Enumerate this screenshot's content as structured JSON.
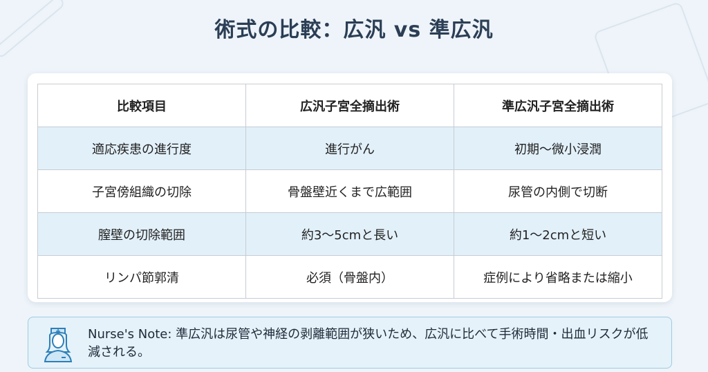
{
  "title": "術式の比較：広汎 vs 準広汎",
  "table": {
    "headers": [
      "比較項目",
      "広汎子宮全摘出術",
      "準広汎子宮全摘出術"
    ],
    "rows": [
      [
        "適応疾患の進行度",
        "進行がん",
        "初期～微小浸潤"
      ],
      [
        "子宮傍組織の切除",
        "骨盤壁近くまで広範囲",
        "尿管の内側で切断"
      ],
      [
        "膣壁の切除範囲",
        "約3～5cmと長い",
        "約1～2cmと短い"
      ],
      [
        "リンパ節郭清",
        "必須（骨盤内）",
        "症例により省略または縮小"
      ]
    ]
  },
  "note": {
    "icon": "nurse-icon",
    "text": "Nurse's Note: 準広汎は尿管や神経の剥離範囲が狭いため、広汎に比べて手術時間・出血リスクが低減される。"
  },
  "colors": {
    "title": "#2b3e55",
    "row_alt": "#e2f0f9",
    "note_bg": "#e5f2fa",
    "note_border": "#9fcbe2"
  }
}
